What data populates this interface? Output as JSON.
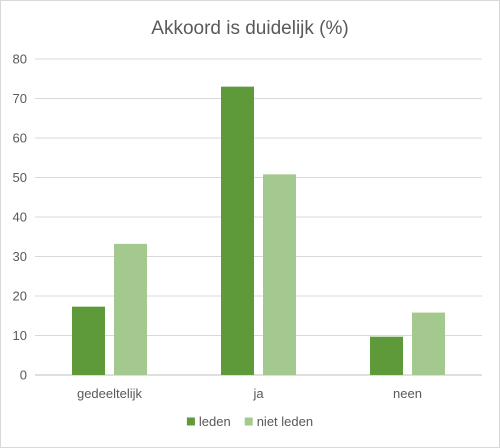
{
  "chart_data": {
    "type": "bar",
    "title": "Akkoord is duidelijk  (%)",
    "xlabel": "",
    "ylabel": "",
    "categories": [
      "gedeeltelijk",
      "ja",
      "neen"
    ],
    "series": [
      {
        "name": "leden",
        "values": [
          17.3,
          73.0,
          9.7
        ],
        "color": "#5e9a3a"
      },
      {
        "name": "niet leden",
        "values": [
          33.2,
          50.8,
          15.8
        ],
        "color": "#a4c98f"
      }
    ],
    "ylim": [
      0,
      80
    ],
    "yticks": [
      0,
      10,
      20,
      30,
      40,
      50,
      60,
      70,
      80
    ],
    "grid": true,
    "legend_position": "bottom"
  }
}
